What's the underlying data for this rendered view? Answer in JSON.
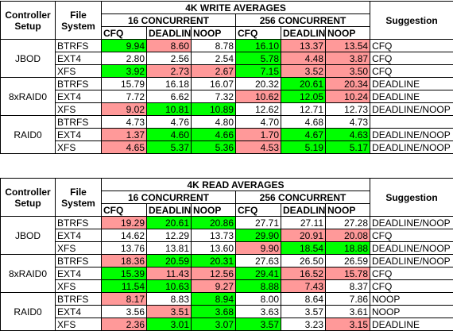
{
  "colors": {
    "good": "#00ff00",
    "bad": "#ff9999"
  },
  "tables": [
    {
      "title": "4K WRITE AVERAGES",
      "headers": {
        "setup": [
          "Controller",
          "Setup"
        ],
        "fs": [
          "File",
          "System"
        ],
        "group16": "16 CONCURRENT",
        "group256": "256 CONCURRENT",
        "schedulers": [
          "CFQ",
          "DEADLINE",
          "NOOP",
          "CFQ",
          "DEADLINE",
          "NOOP"
        ],
        "suggestion": "Suggestion"
      },
      "groups": [
        {
          "setup": "JBOD",
          "rows": [
            {
              "fs": "BTRFS",
              "values": [
                "9.94",
                "8.60",
                "8.78",
                "16.10",
                "13.37",
                "13.54"
              ],
              "hl": [
                "g",
                "r",
                "",
                "g",
                "r",
                "r"
              ],
              "suggestion": "CFQ"
            },
            {
              "fs": "EXT4",
              "values": [
                "2.80",
                "2.56",
                "2.54",
                "5.78",
                "4.48",
                "3.87"
              ],
              "hl": [
                "",
                "",
                "",
                "g",
                "r",
                "r"
              ],
              "suggestion": "CFQ"
            },
            {
              "fs": "XFS",
              "values": [
                "3.92",
                "2.73",
                "2.67",
                "7.15",
                "3.52",
                "3.50"
              ],
              "hl": [
                "g",
                "r",
                "r",
                "g",
                "r",
                "r"
              ],
              "suggestion": "CFQ"
            }
          ]
        },
        {
          "setup": "8xRAID0",
          "rows": [
            {
              "fs": "BTRFS",
              "values": [
                "15.79",
                "16.18",
                "16.07",
                "20.32",
                "20.61",
                "20.34"
              ],
              "hl": [
                "",
                "",
                "",
                "",
                "g",
                "r"
              ],
              "suggestion": "DEADLINE"
            },
            {
              "fs": "EXT4",
              "values": [
                "7.72",
                "6.62",
                "7.32",
                "10.62",
                "12.05",
                "10.24"
              ],
              "hl": [
                "",
                "",
                "",
                "r",
                "g",
                "r"
              ],
              "suggestion": "DEADLINE"
            },
            {
              "fs": "XFS",
              "values": [
                "9.02",
                "10.81",
                "10.89",
                "12.62",
                "12.71",
                "12.73"
              ],
              "hl": [
                "r",
                "g",
                "g",
                "",
                "",
                ""
              ],
              "suggestion": "DEADLINE/NOOP"
            }
          ]
        },
        {
          "setup": "RAID0",
          "rows": [
            {
              "fs": "BTRFS",
              "values": [
                "4.73",
                "4.76",
                "4.80",
                "4.70",
                "4.68",
                "4.73"
              ],
              "hl": [
                "",
                "",
                "",
                "",
                "",
                ""
              ],
              "suggestion": ""
            },
            {
              "fs": "EXT4",
              "values": [
                "1.37",
                "4.60",
                "4.66",
                "1.70",
                "4.67",
                "4.63"
              ],
              "hl": [
                "r",
                "g",
                "g",
                "r",
                "g",
                "g"
              ],
              "suggestion": "DEADLINE/NOOP"
            },
            {
              "fs": "XFS",
              "values": [
                "4.65",
                "5.37",
                "5.36",
                "4.53",
                "5.19",
                "5.17"
              ],
              "hl": [
                "r",
                "g",
                "g",
                "r",
                "g",
                "g"
              ],
              "suggestion": "DEADLINE/NOOP"
            }
          ]
        }
      ]
    },
    {
      "title": "4K READ AVERAGES",
      "headers": {
        "setup": [
          "Controller",
          "Setup"
        ],
        "fs": [
          "File",
          "System"
        ],
        "group16": "16 CONCURRENT",
        "group256": "256 CONCURRENT",
        "schedulers": [
          "CFQ",
          "DEADLINE",
          "NOOP",
          "CFQ",
          "DEADLINE",
          "NOOP"
        ],
        "suggestion": "Suggestion"
      },
      "groups": [
        {
          "setup": "JBOD",
          "rows": [
            {
              "fs": "BTRFS",
              "values": [
                "19.29",
                "20.61",
                "20.86",
                "27.71",
                "27.11",
                "27.28"
              ],
              "hl": [
                "r",
                "g",
                "g",
                "",
                "",
                ""
              ],
              "suggestion": "DEADLINE/NOOP"
            },
            {
              "fs": "EXT4",
              "values": [
                "14.62",
                "12.29",
                "13.73",
                "29.90",
                "20.91",
                "20.08"
              ],
              "hl": [
                "",
                "",
                "",
                "g",
                "r",
                "r"
              ],
              "suggestion": "CFQ"
            },
            {
              "fs": "XFS",
              "values": [
                "13.76",
                "13.81",
                "13.60",
                "9.90",
                "18.54",
                "18.88"
              ],
              "hl": [
                "",
                "",
                "",
                "r",
                "g",
                "g"
              ],
              "suggestion": "DEADLINE/NOOP"
            }
          ]
        },
        {
          "setup": "8xRAID0",
          "rows": [
            {
              "fs": "BTRFS",
              "values": [
                "18.36",
                "20.59",
                "20.31",
                "27.63",
                "26.50",
                "26.59"
              ],
              "hl": [
                "r",
                "g",
                "g",
                "",
                "",
                ""
              ],
              "suggestion": "DEADLINE/NOOP"
            },
            {
              "fs": "EXT4",
              "values": [
                "15.39",
                "11.43",
                "12.56",
                "29.41",
                "16.52",
                "15.78"
              ],
              "hl": [
                "g",
                "r",
                "r",
                "g",
                "r",
                "r"
              ],
              "suggestion": "CFQ"
            },
            {
              "fs": "XFS",
              "values": [
                "11.54",
                "10.63",
                "9.27",
                "8.88",
                "7.43",
                "8.37"
              ],
              "hl": [
                "g",
                "g",
                "r",
                "g",
                "r",
                ""
              ],
              "suggestion": "CFQ"
            }
          ]
        },
        {
          "setup": "RAID0",
          "rows": [
            {
              "fs": "BTRFS",
              "values": [
                "8.17",
                "8.83",
                "8.94",
                "8.00",
                "8.64",
                "7.86"
              ],
              "hl": [
                "r",
                "",
                "g",
                "",
                "",
                ""
              ],
              "suggestion": "NOOP"
            },
            {
              "fs": "EXT4",
              "values": [
                "3.56",
                "3.51",
                "3.68",
                "3.63",
                "3.57",
                "3.61"
              ],
              "hl": [
                "",
                "r",
                "g",
                "",
                "",
                ""
              ],
              "suggestion": "NOOP"
            },
            {
              "fs": "XFS",
              "values": [
                "2.36",
                "3.01",
                "3.07",
                "3.57",
                "3.23",
                "3.15"
              ],
              "hl": [
                "r",
                "g",
                "g",
                "g",
                "",
                "r"
              ],
              "suggestion": "DEADLINE"
            }
          ]
        }
      ]
    }
  ]
}
